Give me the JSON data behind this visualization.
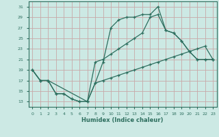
{
  "xlabel": "Humidex (Indice chaleur)",
  "bg_color": "#cce9e4",
  "grid_color": "#c8a8a8",
  "line_color": "#2d6e5e",
  "xlim": [
    -0.5,
    23.5
  ],
  "ylim": [
    12,
    32
  ],
  "yticks": [
    13,
    15,
    17,
    19,
    21,
    23,
    25,
    27,
    29,
    31
  ],
  "xticks": [
    0,
    1,
    2,
    3,
    4,
    5,
    6,
    7,
    8,
    9,
    10,
    11,
    12,
    13,
    14,
    15,
    16,
    17,
    18,
    19,
    20,
    21,
    22,
    23
  ],
  "line1_x": [
    0,
    1,
    2,
    3,
    4,
    5,
    6,
    7,
    8,
    9,
    10,
    11,
    12,
    13,
    14,
    15,
    16,
    17,
    18,
    19,
    20,
    21,
    22,
    23
  ],
  "line1_y": [
    19,
    17,
    17,
    14.5,
    14.5,
    13.5,
    13,
    13,
    16.5,
    20.5,
    27,
    28.5,
    29,
    29,
    29.5,
    29.5,
    31,
    26.5,
    26,
    24.5,
    22.5,
    21,
    21,
    21
  ],
  "line2_x": [
    0,
    1,
    2,
    3,
    4,
    5,
    6,
    7,
    8,
    9,
    10,
    11,
    12,
    13,
    14,
    15,
    16,
    17,
    18,
    19,
    20,
    21,
    22,
    23
  ],
  "line2_y": [
    19,
    17,
    17,
    14.5,
    14.5,
    13.5,
    13,
    13,
    20.5,
    21,
    22,
    23,
    24,
    25,
    26,
    29,
    29.5,
    26.5,
    26,
    24.5,
    22.5,
    21,
    21,
    21
  ],
  "line3_x": [
    0,
    1,
    2,
    7,
    8,
    9,
    10,
    11,
    12,
    13,
    14,
    15,
    16,
    17,
    18,
    19,
    20,
    21,
    22,
    23
  ],
  "line3_y": [
    19,
    17,
    17,
    13,
    16.5,
    17,
    17.5,
    18,
    18.5,
    19,
    19.5,
    20,
    20.5,
    21,
    21.5,
    22,
    22.5,
    23,
    23.5,
    21
  ]
}
